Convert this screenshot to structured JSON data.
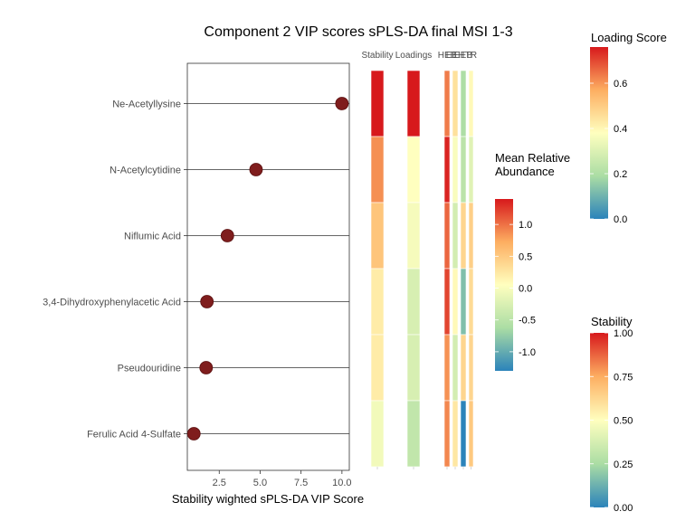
{
  "chart_data": {
    "type": "scatter",
    "title": "Component 2 VIP scores sPLS-DA final MSI 1-3",
    "xlabel": "Stability wighted sPLS-DA VIP Score",
    "ylabel": "",
    "xlim": [
      0.55,
      10.45
    ],
    "xticks": [
      "2.5",
      "5.0",
      "7.5",
      "10.0"
    ],
    "xtick_values": [
      2.5,
      5.0,
      7.5,
      10.0
    ],
    "grid": false,
    "point_color": "#7f1d1d",
    "categories": [
      "Ne-Acetyllysine",
      "N-Acetylcytidine",
      "Niflumic Acid",
      "3,4-Dihydroxyphenylacetic Acid",
      "Pseudouridine",
      "Ferulic Acid 4-Sulfate"
    ],
    "values": [
      10.0,
      4.75,
      3.0,
      1.75,
      1.7,
      0.95
    ],
    "heatmap": {
      "columns": [
        "Stability",
        "Loadings",
        "HEB",
        "EEH",
        "EEB",
        "TR"
      ],
      "stability": [
        1.0,
        0.8,
        0.68,
        0.56,
        0.56,
        0.46
      ],
      "loadings": [
        0.76,
        0.38,
        0.36,
        0.29,
        0.29,
        0.24
      ],
      "abundance": [
        [
          0.95,
          0.3,
          -0.6,
          0.1
        ],
        [
          1.35,
          0.0,
          -0.5,
          -0.2
        ],
        [
          1.05,
          -0.3,
          0.4,
          0.45
        ],
        [
          1.2,
          0.1,
          -0.85,
          0.35
        ],
        [
          0.85,
          -0.3,
          0.4,
          0.4
        ],
        [
          0.9,
          0.25,
          -1.3,
          0.5
        ]
      ]
    },
    "legends": [
      {
        "title": "Loading Score",
        "range": [
          0,
          0.76
        ],
        "ticks": [
          "0.0",
          "0.2",
          "0.4",
          "0.6"
        ],
        "tick_values": [
          0,
          0.2,
          0.4,
          0.6
        ]
      },
      {
        "title": "Mean Relative\nAbundance",
        "range": [
          -1.3,
          1.4
        ],
        "ticks": [
          "-1.0",
          "-0.5",
          "0.0",
          "0.5",
          "1.0"
        ],
        "tick_values": [
          -1.0,
          -0.5,
          0.0,
          0.5,
          1.0
        ]
      },
      {
        "title": "Stability",
        "range": [
          0,
          1
        ],
        "ticks": [
          "0.00",
          "0.25",
          "0.50",
          "0.75",
          "1.00"
        ],
        "tick_values": [
          0,
          0.25,
          0.5,
          0.75,
          1.0
        ]
      }
    ],
    "palette": [
      "#2b83ba",
      "#abdda4",
      "#ffffbf",
      "#fdae61",
      "#d7191c"
    ]
  }
}
